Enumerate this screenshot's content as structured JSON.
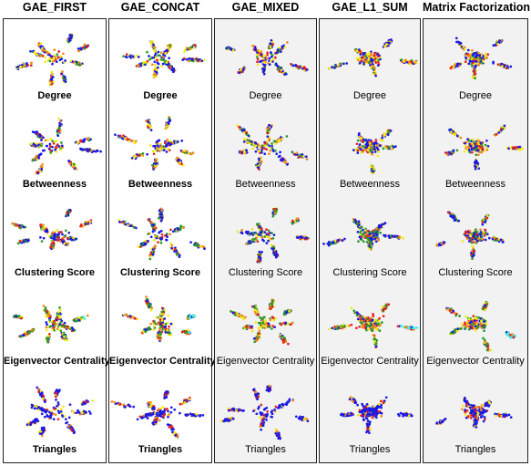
{
  "columns": [
    {
      "title": "GAE_FIRST",
      "bold_labels": true,
      "shaded": false
    },
    {
      "title": "GAE_CONCAT",
      "bold_labels": true,
      "shaded": false
    },
    {
      "title": "GAE_MIXED",
      "bold_labels": false,
      "shaded": true
    },
    {
      "title": "GAE_L1_SUM",
      "bold_labels": false,
      "shaded": true
    },
    {
      "title": "Matrix Factorization",
      "bold_labels": false,
      "shaded": true
    }
  ],
  "rows": [
    {
      "label": "Degree",
      "palette": "warm"
    },
    {
      "label": "Betweenness",
      "palette": "warm"
    },
    {
      "label": "Clustering Score",
      "palette": "mixed"
    },
    {
      "label": "Eigenvector  Centrality",
      "palette": "cyan"
    },
    {
      "label": "Triangles",
      "palette": "blue"
    }
  ],
  "colors": {
    "blue": "#1a1ae6",
    "red": "#e62020",
    "orange": "#f08a1a",
    "yellow": "#f2ea1a",
    "green": "#2a9a2a",
    "cyan": "#3cf0f0",
    "border": "#222222"
  }
}
